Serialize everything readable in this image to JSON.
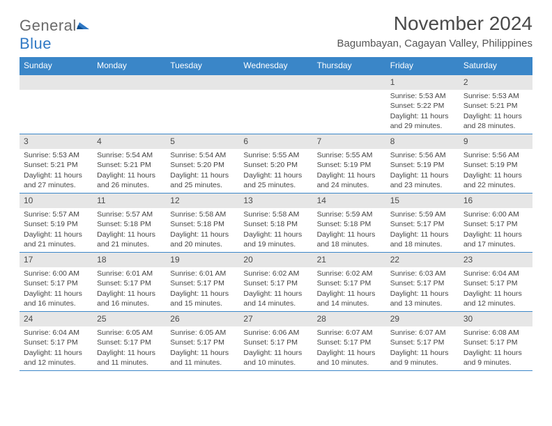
{
  "logo": {
    "text1": "General",
    "text2": "Blue"
  },
  "title": "November 2024",
  "subtitle": "Bagumbayan, Cagayan Valley, Philippines",
  "colors": {
    "header_bg": "#3a86c8",
    "header_text": "#ffffff",
    "day_head_bg": "#e6e6e6",
    "border": "#3a86c8",
    "body_text": "#444444"
  },
  "dow": [
    "Sunday",
    "Monday",
    "Tuesday",
    "Wednesday",
    "Thursday",
    "Friday",
    "Saturday"
  ],
  "weeks": [
    [
      {
        "n": "",
        "sr": "",
        "ss": "",
        "dl": ""
      },
      {
        "n": "",
        "sr": "",
        "ss": "",
        "dl": ""
      },
      {
        "n": "",
        "sr": "",
        "ss": "",
        "dl": ""
      },
      {
        "n": "",
        "sr": "",
        "ss": "",
        "dl": ""
      },
      {
        "n": "",
        "sr": "",
        "ss": "",
        "dl": ""
      },
      {
        "n": "1",
        "sr": "Sunrise: 5:53 AM",
        "ss": "Sunset: 5:22 PM",
        "dl": "Daylight: 11 hours and 29 minutes."
      },
      {
        "n": "2",
        "sr": "Sunrise: 5:53 AM",
        "ss": "Sunset: 5:21 PM",
        "dl": "Daylight: 11 hours and 28 minutes."
      }
    ],
    [
      {
        "n": "3",
        "sr": "Sunrise: 5:53 AM",
        "ss": "Sunset: 5:21 PM",
        "dl": "Daylight: 11 hours and 27 minutes."
      },
      {
        "n": "4",
        "sr": "Sunrise: 5:54 AM",
        "ss": "Sunset: 5:21 PM",
        "dl": "Daylight: 11 hours and 26 minutes."
      },
      {
        "n": "5",
        "sr": "Sunrise: 5:54 AM",
        "ss": "Sunset: 5:20 PM",
        "dl": "Daylight: 11 hours and 25 minutes."
      },
      {
        "n": "6",
        "sr": "Sunrise: 5:55 AM",
        "ss": "Sunset: 5:20 PM",
        "dl": "Daylight: 11 hours and 25 minutes."
      },
      {
        "n": "7",
        "sr": "Sunrise: 5:55 AM",
        "ss": "Sunset: 5:19 PM",
        "dl": "Daylight: 11 hours and 24 minutes."
      },
      {
        "n": "8",
        "sr": "Sunrise: 5:56 AM",
        "ss": "Sunset: 5:19 PM",
        "dl": "Daylight: 11 hours and 23 minutes."
      },
      {
        "n": "9",
        "sr": "Sunrise: 5:56 AM",
        "ss": "Sunset: 5:19 PM",
        "dl": "Daylight: 11 hours and 22 minutes."
      }
    ],
    [
      {
        "n": "10",
        "sr": "Sunrise: 5:57 AM",
        "ss": "Sunset: 5:19 PM",
        "dl": "Daylight: 11 hours and 21 minutes."
      },
      {
        "n": "11",
        "sr": "Sunrise: 5:57 AM",
        "ss": "Sunset: 5:18 PM",
        "dl": "Daylight: 11 hours and 21 minutes."
      },
      {
        "n": "12",
        "sr": "Sunrise: 5:58 AM",
        "ss": "Sunset: 5:18 PM",
        "dl": "Daylight: 11 hours and 20 minutes."
      },
      {
        "n": "13",
        "sr": "Sunrise: 5:58 AM",
        "ss": "Sunset: 5:18 PM",
        "dl": "Daylight: 11 hours and 19 minutes."
      },
      {
        "n": "14",
        "sr": "Sunrise: 5:59 AM",
        "ss": "Sunset: 5:18 PM",
        "dl": "Daylight: 11 hours and 18 minutes."
      },
      {
        "n": "15",
        "sr": "Sunrise: 5:59 AM",
        "ss": "Sunset: 5:17 PM",
        "dl": "Daylight: 11 hours and 18 minutes."
      },
      {
        "n": "16",
        "sr": "Sunrise: 6:00 AM",
        "ss": "Sunset: 5:17 PM",
        "dl": "Daylight: 11 hours and 17 minutes."
      }
    ],
    [
      {
        "n": "17",
        "sr": "Sunrise: 6:00 AM",
        "ss": "Sunset: 5:17 PM",
        "dl": "Daylight: 11 hours and 16 minutes."
      },
      {
        "n": "18",
        "sr": "Sunrise: 6:01 AM",
        "ss": "Sunset: 5:17 PM",
        "dl": "Daylight: 11 hours and 16 minutes."
      },
      {
        "n": "19",
        "sr": "Sunrise: 6:01 AM",
        "ss": "Sunset: 5:17 PM",
        "dl": "Daylight: 11 hours and 15 minutes."
      },
      {
        "n": "20",
        "sr": "Sunrise: 6:02 AM",
        "ss": "Sunset: 5:17 PM",
        "dl": "Daylight: 11 hours and 14 minutes."
      },
      {
        "n": "21",
        "sr": "Sunrise: 6:02 AM",
        "ss": "Sunset: 5:17 PM",
        "dl": "Daylight: 11 hours and 14 minutes."
      },
      {
        "n": "22",
        "sr": "Sunrise: 6:03 AM",
        "ss": "Sunset: 5:17 PM",
        "dl": "Daylight: 11 hours and 13 minutes."
      },
      {
        "n": "23",
        "sr": "Sunrise: 6:04 AM",
        "ss": "Sunset: 5:17 PM",
        "dl": "Daylight: 11 hours and 12 minutes."
      }
    ],
    [
      {
        "n": "24",
        "sr": "Sunrise: 6:04 AM",
        "ss": "Sunset: 5:17 PM",
        "dl": "Daylight: 11 hours and 12 minutes."
      },
      {
        "n": "25",
        "sr": "Sunrise: 6:05 AM",
        "ss": "Sunset: 5:17 PM",
        "dl": "Daylight: 11 hours and 11 minutes."
      },
      {
        "n": "26",
        "sr": "Sunrise: 6:05 AM",
        "ss": "Sunset: 5:17 PM",
        "dl": "Daylight: 11 hours and 11 minutes."
      },
      {
        "n": "27",
        "sr": "Sunrise: 6:06 AM",
        "ss": "Sunset: 5:17 PM",
        "dl": "Daylight: 11 hours and 10 minutes."
      },
      {
        "n": "28",
        "sr": "Sunrise: 6:07 AM",
        "ss": "Sunset: 5:17 PM",
        "dl": "Daylight: 11 hours and 10 minutes."
      },
      {
        "n": "29",
        "sr": "Sunrise: 6:07 AM",
        "ss": "Sunset: 5:17 PM",
        "dl": "Daylight: 11 hours and 9 minutes."
      },
      {
        "n": "30",
        "sr": "Sunrise: 6:08 AM",
        "ss": "Sunset: 5:17 PM",
        "dl": "Daylight: 11 hours and 9 minutes."
      }
    ]
  ]
}
